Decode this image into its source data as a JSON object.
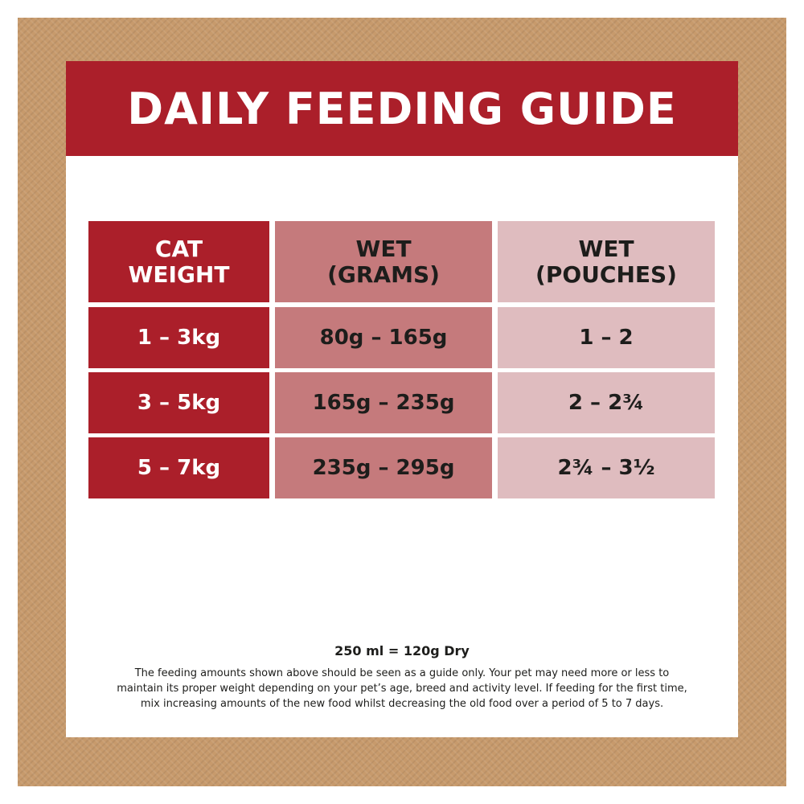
{
  "title": "DAILY FEEDING GUIDE",
  "table": {
    "headers": [
      [
        "CAT",
        "WEIGHT"
      ],
      [
        "WET",
        "(GRAMS)"
      ],
      [
        "WET",
        "(POUCHES)"
      ]
    ],
    "rows": [
      {
        "weight": "1 – 3kg",
        "grams": "80g – 165g",
        "pouches": "1 – 2"
      },
      {
        "weight": "3 – 5kg",
        "grams": "165g – 235g",
        "pouches": "2 – 2¾"
      },
      {
        "weight": "5 – 7kg",
        "grams": "235g – 295g",
        "pouches": "2¾ – 3½"
      }
    ]
  },
  "footer": {
    "conversion": "250 ml = 120g Dry",
    "note_lines": [
      "The feeding amounts shown above should be seen as a guide only. Your pet may need more or less to",
      "maintain its proper weight depending on your pet’s age, breed and activity level. If feeding for the first time,",
      "mix increasing amounts of the new food whilst decreasing the old food over a period of 5 to 7 days."
    ]
  },
  "colors": {
    "banner": "#ab1f2a",
    "weight_column": "#ab1f2a",
    "grams_column": "#c57a7c",
    "pouches_column": "#dfbcbf",
    "frame": "#c79a6c"
  }
}
